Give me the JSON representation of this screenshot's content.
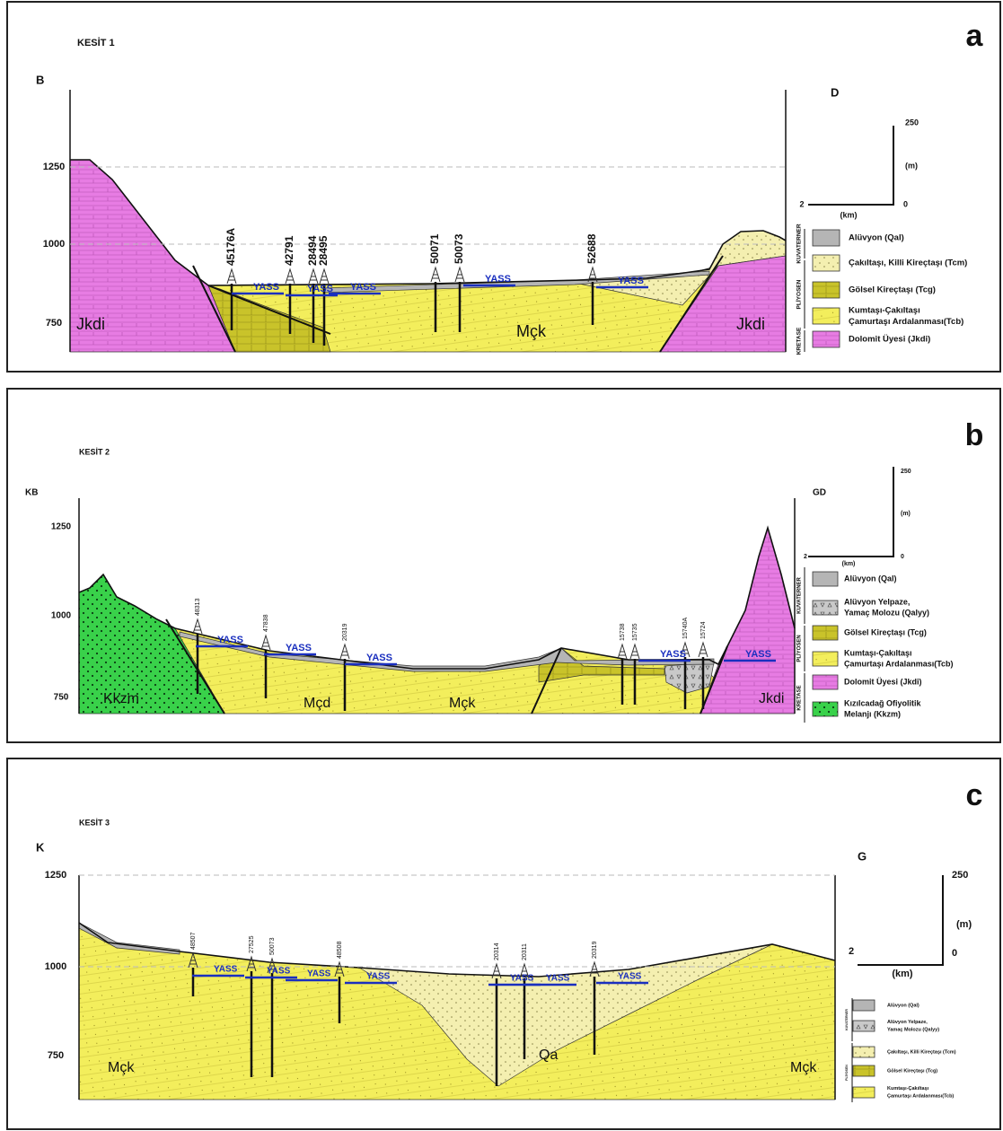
{
  "panels": [
    {
      "letter": "a",
      "title": "KESİT 1",
      "left_end": "B",
      "right_end": "D",
      "elevations": [
        "1250",
        "1000",
        "750"
      ],
      "wells": [
        "45176A",
        "42791",
        "28494",
        "28495",
        "50071",
        "50073",
        "52688"
      ],
      "water_table": "YASS",
      "units": [
        "Jkdi",
        "Mçk",
        "Jkdi"
      ],
      "scale": {
        "vertical": "250",
        "vertical_unit": "(m)",
        "horizontal_start": "2",
        "horizontal_zero": "0",
        "horizontal_unit": "(km)"
      },
      "legend": {
        "groups": [
          "KUVATERNER",
          "PLİYOSEN",
          "KRETASE"
        ],
        "items": [
          {
            "label": [
              "Alüvyon (Qal)"
            ]
          },
          {
            "label": [
              "Çakıltaşı, Killi Kireçtaşı (Tcm)"
            ]
          },
          {
            "label": [
              "Gölsel Kireçtaşı (Tcg)"
            ]
          },
          {
            "label": [
              "Kumtaşı-Çakıltaşı",
              "Çamurtaşı Ardalanması(Tcb)"
            ]
          },
          {
            "label": [
              "Dolomit Üyesi (Jkdi)"
            ]
          }
        ]
      }
    },
    {
      "letter": "b",
      "title": "KESİT 2",
      "left_end": "KB",
      "right_end": "GD",
      "elevations": [
        "1250",
        "1000",
        "750"
      ],
      "wells": [
        "48313",
        "47838",
        "20319",
        "15738",
        "15735",
        "15740A",
        "15724"
      ],
      "water_table": "YASS",
      "units": [
        "Kkzm",
        "Mçd",
        "Mçk",
        "Jkdi"
      ],
      "scale": {
        "vertical": "250",
        "vertical_unit": "(m)",
        "horizontal_start": "2",
        "horizontal_zero": "0",
        "horizontal_unit": "(km)"
      },
      "legend": {
        "groups": [
          "KUVATERNER",
          "PLİYOSEN",
          "KRETASE"
        ],
        "items": [
          {
            "label": [
              "Alüvyon (Qal)"
            ]
          },
          {
            "label": [
              "Alüvyon Yelpaze,",
              "Yamaç Molozu (Qalyy)"
            ]
          },
          {
            "label": [
              "Gölsel Kireçtaşı (Tcg)"
            ]
          },
          {
            "label": [
              "Kumtaşı-Çakıltaşı",
              "Çamurtaşı Ardalanması(Tcb)"
            ]
          },
          {
            "label": [
              "Dolomit Üyesi (Jkdi)"
            ]
          },
          {
            "label": [
              "Kızılcadağ Ofiyolitik",
              "Melanjı (Kkzm)"
            ]
          }
        ]
      }
    },
    {
      "letter": "c",
      "title": "KESİT 3",
      "left_end": "K",
      "right_end": "G",
      "elevations": [
        "1250",
        "1000",
        "750"
      ],
      "wells": [
        "48507",
        "27525",
        "50073",
        "48508",
        "20314",
        "20311",
        "20319"
      ],
      "water_table": "YASS",
      "units": [
        "Mçk",
        "Qa",
        "Mçk"
      ],
      "scale": {
        "vertical": "250",
        "vertical_unit": "(m)",
        "horizontal_start": "2",
        "horizontal_zero": "0",
        "horizontal_unit": "(km)"
      },
      "legend": {
        "groups": [
          "KUVATERNER",
          "PLİYOSEN"
        ],
        "items": [
          {
            "label": [
              "Alüvyon (Qal)"
            ]
          },
          {
            "label": [
              "Alüvyon Yelpaze,",
              "Yamaç Molozu (Qalyy)"
            ]
          },
          {
            "label": [
              "Çakıltaşı, Killi Kireçtaşı (Tcm)"
            ]
          },
          {
            "label": [
              "Gölsel Kireçtaşı (Tcg)"
            ]
          },
          {
            "label": [
              "Kumtaşı-Çakıltaşı",
              "Çamurtaşı Ardalanması(Tcb)"
            ]
          }
        ]
      }
    }
  ]
}
